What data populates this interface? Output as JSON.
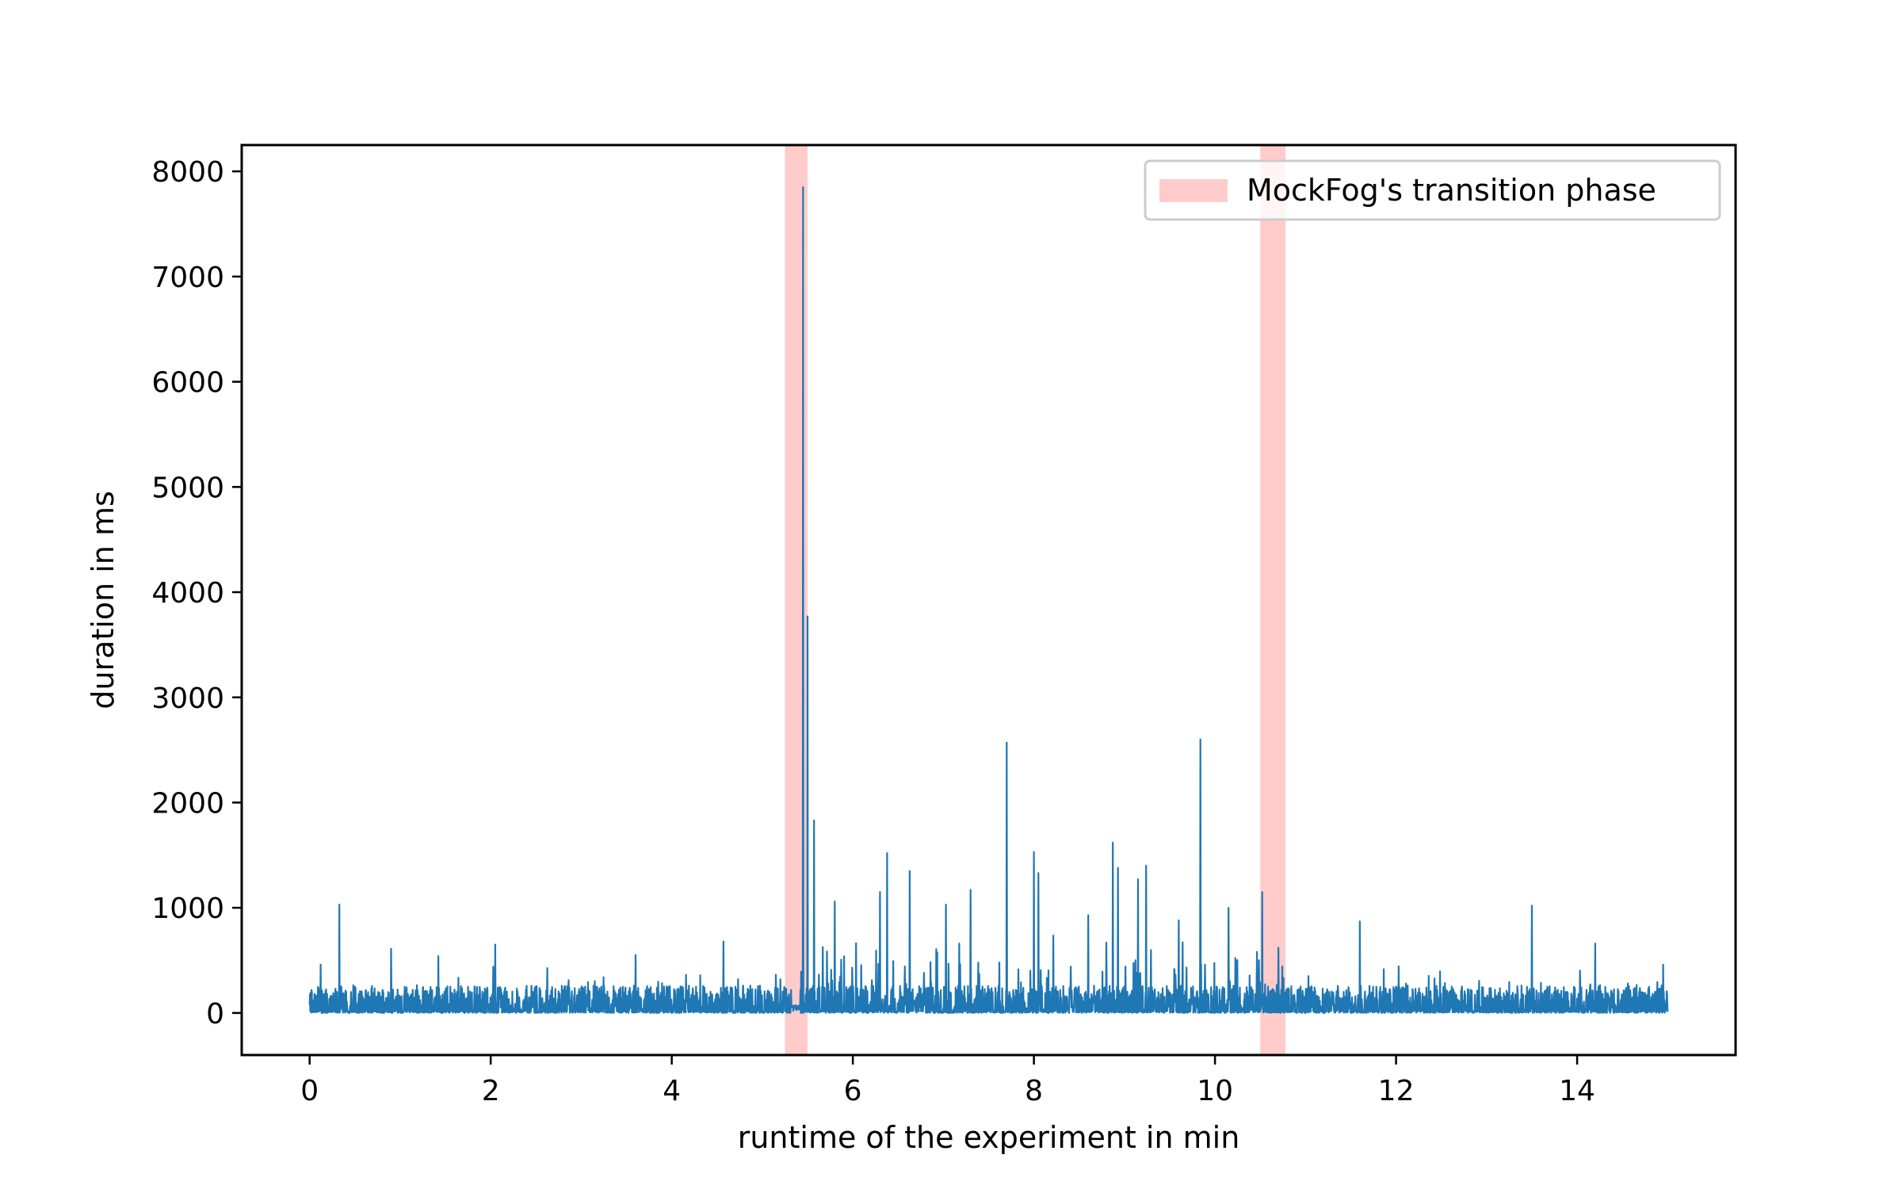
{
  "chart_data": {
    "type": "line",
    "title": "",
    "xlabel": "runtime of the experiment in min",
    "ylabel": "duration in ms",
    "xlim": [
      -0.75,
      15.75
    ],
    "ylim": [
      -400,
      8250
    ],
    "x_ticks": [
      0,
      2,
      4,
      6,
      8,
      10,
      12,
      14
    ],
    "y_ticks": [
      0,
      1000,
      2000,
      3000,
      4000,
      5000,
      6000,
      7000,
      8000
    ],
    "grid": false,
    "legend_position": "top-right",
    "colors": {
      "series": "#1f77b4",
      "transition_band": "#ffcccb",
      "axes": "#000000"
    },
    "bands": [
      {
        "name": "MockFog's transition phase",
        "x_start": 5.25,
        "x_end": 5.5
      },
      {
        "name": "MockFog's transition phase",
        "x_start": 10.5,
        "x_end": 10.78
      }
    ],
    "legend": [
      {
        "label": "MockFog's transition phase",
        "kind": "band"
      }
    ],
    "series": [
      {
        "color": "#1f77b4",
        "baseline_range": [
          0,
          260
        ],
        "x_range": [
          0,
          15
        ],
        "spikes": [
          {
            "x": 0.33,
            "y": 1030
          },
          {
            "x": 0.12,
            "y": 460
          },
          {
            "x": 0.9,
            "y": 610
          },
          {
            "x": 1.42,
            "y": 540
          },
          {
            "x": 2.05,
            "y": 650
          },
          {
            "x": 3.6,
            "y": 550
          },
          {
            "x": 4.57,
            "y": 680
          },
          {
            "x": 5.2,
            "y": 320
          },
          {
            "x": 5.45,
            "y": 7850
          },
          {
            "x": 5.5,
            "y": 3770
          },
          {
            "x": 5.57,
            "y": 1830
          },
          {
            "x": 5.8,
            "y": 1060
          },
          {
            "x": 6.3,
            "y": 1150
          },
          {
            "x": 6.38,
            "y": 1520
          },
          {
            "x": 6.63,
            "y": 1350
          },
          {
            "x": 7.03,
            "y": 1030
          },
          {
            "x": 7.3,
            "y": 1170
          },
          {
            "x": 7.7,
            "y": 2570
          },
          {
            "x": 8.0,
            "y": 1530
          },
          {
            "x": 8.05,
            "y": 1330
          },
          {
            "x": 8.6,
            "y": 930
          },
          {
            "x": 8.87,
            "y": 1620
          },
          {
            "x": 8.93,
            "y": 1380
          },
          {
            "x": 9.15,
            "y": 1270
          },
          {
            "x": 9.24,
            "y": 1400
          },
          {
            "x": 9.6,
            "y": 880
          },
          {
            "x": 9.84,
            "y": 2600
          },
          {
            "x": 10.15,
            "y": 1000
          },
          {
            "x": 10.52,
            "y": 1150
          },
          {
            "x": 10.7,
            "y": 620
          },
          {
            "x": 11.6,
            "y": 870
          },
          {
            "x": 13.5,
            "y": 1020
          },
          {
            "x": 14.2,
            "y": 660
          },
          {
            "x": 14.95,
            "y": 460
          }
        ]
      }
    ]
  }
}
